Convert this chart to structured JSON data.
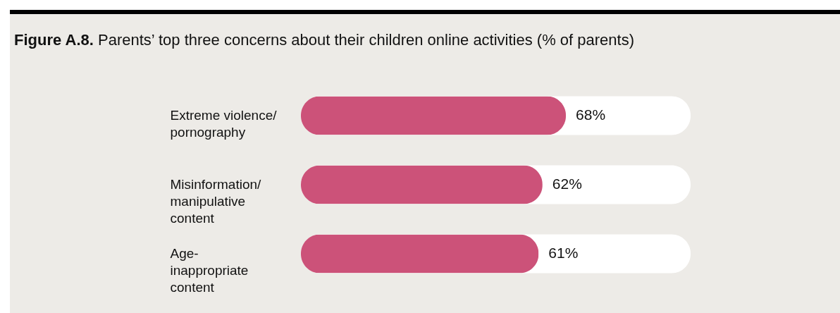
{
  "chart_data": {
    "type": "bar",
    "orientation": "horizontal",
    "xlim": [
      0,
      100
    ],
    "title": "Figure A.8. Parents’ top three concerns about their children online activities (% of parents)",
    "categories": [
      "Extreme violence/pornography",
      "Misinformation/manipulative content",
      "Age-inappropriate content"
    ],
    "values": [
      68,
      62,
      61
    ],
    "value_labels": [
      "68%",
      "62%",
      "61%"
    ],
    "color": "#cc5279"
  }
}
